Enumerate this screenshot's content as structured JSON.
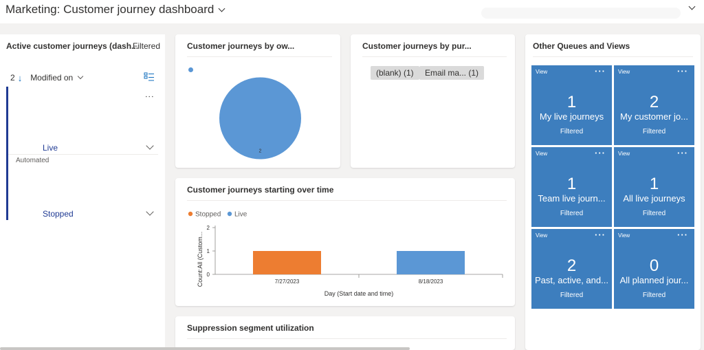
{
  "header": {
    "title": "Marketing: Customer journey dashboard"
  },
  "left_panel": {
    "title": "Active customer journeys (dash...",
    "filter_label": "Filtered",
    "sort": {
      "count": "2",
      "field": "Modified on"
    },
    "groups": [
      {
        "label": "Live",
        "sub": ""
      },
      {
        "label": "Stopped",
        "sub": "Automated"
      }
    ]
  },
  "cards": {
    "by_owner": {
      "title": "Customer journeys by ow...",
      "slice_label": "2"
    },
    "by_purpose": {
      "title": "Customer journeys by pur...",
      "chips": [
        "(blank) (1)",
        "Email ma... (1)"
      ]
    },
    "over_time": {
      "title": "Customer journeys starting over time"
    },
    "suppression": {
      "title": "Suppression segment utilization"
    }
  },
  "queues": {
    "title": "Other Queues and Views",
    "tiles": [
      {
        "view": "View",
        "count": "1",
        "name": "My live journeys",
        "filter": "Filtered"
      },
      {
        "view": "View",
        "count": "2",
        "name": "My customer jo...",
        "filter": "Filtered"
      },
      {
        "view": "View",
        "count": "1",
        "name": "Team live journ...",
        "filter": "Filtered"
      },
      {
        "view": "View",
        "count": "1",
        "name": "All live journeys",
        "filter": "Filtered"
      },
      {
        "view": "View",
        "count": "2",
        "name": "Past, active, and...",
        "filter": "Filtered"
      },
      {
        "view": "View",
        "count": "0",
        "name": "All planned jour...",
        "filter": "Filtered"
      }
    ]
  },
  "colors": {
    "pie": "#5b97d5",
    "stopped": "#ed7d31",
    "live": "#5b97d5",
    "tile": "#3d7ebe",
    "group_accent": "#1f3a93"
  },
  "chart_data": [
    {
      "type": "pie",
      "title": "Customer journeys by ow...",
      "categories": [
        ""
      ],
      "values": [
        2
      ],
      "data_labels": [
        "2"
      ]
    },
    {
      "type": "bar",
      "title": "Customer journeys starting over time",
      "categories": [
        "7/27/2023",
        "8/18/2023"
      ],
      "series": [
        {
          "name": "Stopped",
          "values": [
            1,
            0
          ]
        },
        {
          "name": "Live",
          "values": [
            0,
            1
          ]
        }
      ],
      "xlabel": "Day (Start date and time)",
      "ylabel": "Count:All (Custom...",
      "ylim": [
        0,
        2
      ],
      "yticks": [
        "0",
        "1",
        "2"
      ],
      "legend": "top-left"
    }
  ]
}
